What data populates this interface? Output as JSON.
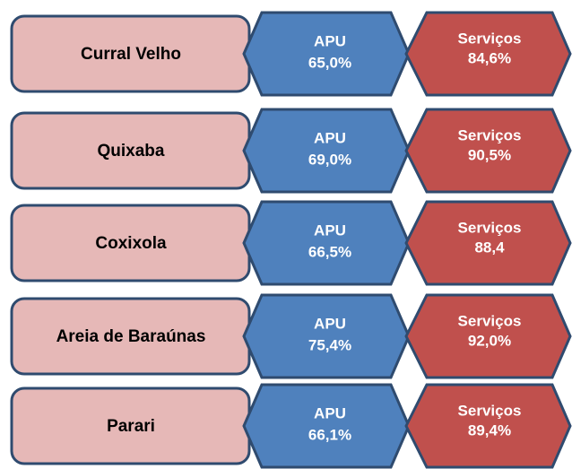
{
  "rows": [
    {
      "name": "Curral Velho",
      "apu": {
        "label": "APU",
        "value": "65,0%"
      },
      "servicos": {
        "label": "Serviços",
        "value": "84,6%"
      }
    },
    {
      "name": "Quixaba",
      "apu": {
        "label": "APU",
        "value": "69,0%"
      },
      "servicos": {
        "label": "Serviços",
        "value": "90,5%"
      }
    },
    {
      "name": "Coxixola",
      "apu": {
        "label": "APU",
        "value": "66,5%"
      },
      "servicos": {
        "label": "Serviços",
        "value": "88,4"
      }
    },
    {
      "name": "Areia de Baraúnas",
      "apu": {
        "label": "APU",
        "value": "75,4%"
      },
      "servicos": {
        "label": "Serviços",
        "value": "92,0%"
      }
    },
    {
      "name": "Parari",
      "apu": {
        "label": "APU",
        "value": "66,1%"
      },
      "servicos": {
        "label": "Serviços",
        "value": "89,4%"
      }
    }
  ]
}
